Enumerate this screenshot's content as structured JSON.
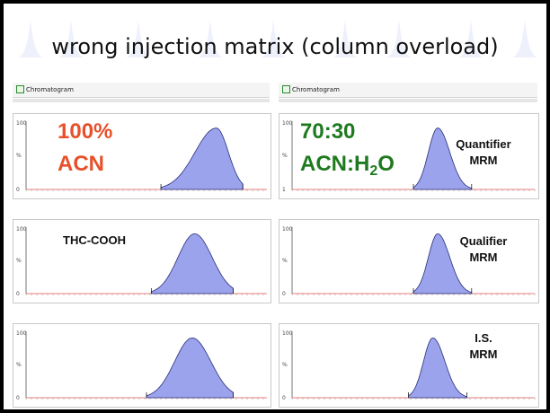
{
  "slide": {
    "title": "wrong injection matrix (column overload)"
  },
  "columns": [
    {
      "window_label": "Chromatogram"
    },
    {
      "window_label": "Chromatogram"
    }
  ],
  "conditions": {
    "left_line1": "100%",
    "left_line2": "ACN",
    "right_line1": "70:30",
    "right_line2_prefix": "ACN:H",
    "right_line2_subscript": "2",
    "right_line2_suffix": "O"
  },
  "analyte_label": "THC-COOH",
  "trace_labels": [
    {
      "line1": "Quantifier",
      "line2": "MRM"
    },
    {
      "line1": "Qualifier",
      "line2": "MRM"
    },
    {
      "line1": "I.S.",
      "line2": "MRM"
    }
  ],
  "colors": {
    "left_condition": "#e8502a",
    "right_condition": "#1f7a1f",
    "peak_fill": "#9aa3ec",
    "peak_outline": "#2a2f7a",
    "noise_trace": "#e05050"
  },
  "chart_data": [
    {
      "type": "area",
      "panel": "left-quantifier",
      "y_ticks": [
        "100",
        "%",
        "0"
      ],
      "peak_apex_fraction": 0.79,
      "peak_left_fraction": 0.56,
      "peak_right_fraction": 0.9,
      "tail": "broad"
    },
    {
      "type": "area",
      "panel": "right-quantifier",
      "y_ticks": [
        "100",
        "%",
        "1"
      ],
      "peak_apex_fraction": 0.6,
      "peak_left_fraction": 0.5,
      "peak_right_fraction": 0.74,
      "tail": "narrow"
    },
    {
      "type": "area",
      "panel": "left-qualifier",
      "y_ticks": [
        "100",
        "%",
        "0"
      ],
      "peak_apex_fraction": 0.7,
      "peak_left_fraction": 0.52,
      "peak_right_fraction": 0.86,
      "tail": "broad"
    },
    {
      "type": "area",
      "panel": "right-qualifier",
      "y_ticks": [
        "100",
        "%",
        "0"
      ],
      "peak_apex_fraction": 0.6,
      "peak_left_fraction": 0.5,
      "peak_right_fraction": 0.74,
      "tail": "narrow"
    },
    {
      "type": "area",
      "panel": "left-is",
      "y_ticks": [
        "100",
        "%",
        "0"
      ],
      "peak_apex_fraction": 0.69,
      "peak_left_fraction": 0.5,
      "peak_right_fraction": 0.86,
      "tail": "broad"
    },
    {
      "type": "area",
      "panel": "right-is",
      "y_ticks": [
        "100",
        "%",
        "0"
      ],
      "peak_apex_fraction": 0.58,
      "peak_left_fraction": 0.48,
      "peak_right_fraction": 0.72,
      "tail": "narrow"
    }
  ]
}
